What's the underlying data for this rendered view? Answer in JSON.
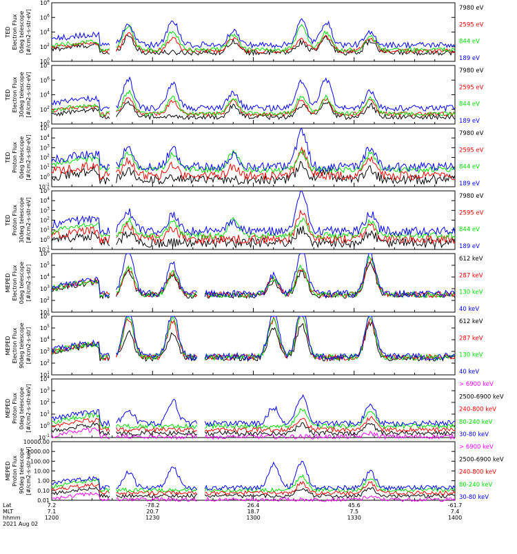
{
  "colors": {
    "black": "#000000",
    "red": "#ff0000",
    "green": "#00dd00",
    "blue": "#0000ff",
    "magenta": "#ff00ff"
  },
  "footer": {
    "rows": [
      {
        "label": "Lat",
        "values": [
          "7.2",
          "-78.2",
          "26.4",
          "45.6",
          "-61.7"
        ]
      },
      {
        "label": "MLT",
        "values": [
          "7.1",
          "20.7",
          "18.7",
          "7.5",
          "7.4"
        ]
      },
      {
        "label": "hhmm",
        "values": [
          "1200",
          "1230",
          "1300",
          "1330",
          "1400"
        ]
      }
    ],
    "date": "2021 Aug 02"
  },
  "chart_data": [
    {
      "type": "line",
      "instrument": "TED",
      "ylabel": [
        "TED",
        "Electron Flux",
        "0deg telescope",
        "[#/cm2-s-str-eV]"
      ],
      "scale": "log",
      "ytick_labels": [
        "10^0",
        "10^2",
        "10^4",
        "10^6",
        "10^8"
      ],
      "ylim": [
        1,
        100000000.0
      ],
      "series": [
        {
          "name": "7980 eV",
          "color": "#000000",
          "base": 1.6,
          "events": [
            [
              0.19,
              2.4
            ],
            [
              0.45,
              1.6
            ],
            [
              0.62,
              1.4
            ],
            [
              0.68,
              2.0
            ],
            [
              0.79,
              1.6
            ]
          ],
          "noise": 0.35
        },
        {
          "name": "2595 eV",
          "color": "#ff0000",
          "base": 1.9,
          "events": [
            [
              0.19,
              2.4
            ],
            [
              0.3,
              1.7
            ],
            [
              0.45,
              1.8
            ],
            [
              0.62,
              1.6
            ],
            [
              0.68,
              2.0
            ],
            [
              0.79,
              1.8
            ]
          ],
          "noise": 0.3
        },
        {
          "name": "844 eV",
          "color": "#00dd00",
          "base": 2.1,
          "events": [
            [
              0.19,
              3.3
            ],
            [
              0.3,
              2.6
            ],
            [
              0.45,
              2.0
            ],
            [
              0.62,
              3.4
            ],
            [
              0.68,
              2.4
            ],
            [
              0.79,
              1.8
            ]
          ],
          "noise": 0.3
        },
        {
          "name": "189 eV",
          "color": "#0000ff",
          "base": 3.0,
          "events": [
            [
              0.19,
              2.8
            ],
            [
              0.3,
              3.4
            ],
            [
              0.45,
              2.0
            ],
            [
              0.62,
              3.3
            ],
            [
              0.68,
              3.2
            ],
            [
              0.79,
              1.6
            ]
          ],
          "noise": 0.4
        }
      ]
    },
    {
      "type": "line",
      "instrument": "TED",
      "ylabel": [
        "TED",
        "Electron Flux",
        "30deg telescope",
        "[#/cm2-s-str-eV]"
      ],
      "scale": "log",
      "ytick_labels": [
        "10^0",
        "10^2",
        "10^4",
        "10^6",
        "10^8"
      ],
      "ylim": [
        1,
        100000000.0
      ],
      "series": [
        {
          "name": "7980 eV",
          "color": "#000000",
          "base": 1.3,
          "events": [
            [
              0.19,
              2.0
            ],
            [
              0.45,
              1.4
            ],
            [
              0.62,
              1.6
            ],
            [
              0.68,
              2.0
            ],
            [
              0.79,
              1.6
            ]
          ],
          "noise": 0.35
        },
        {
          "name": "2595 eV",
          "color": "#ff0000",
          "base": 1.8,
          "events": [
            [
              0.19,
              2.4
            ],
            [
              0.3,
              1.7
            ],
            [
              0.45,
              1.8
            ],
            [
              0.62,
              1.8
            ],
            [
              0.68,
              2.0
            ],
            [
              0.79,
              1.8
            ]
          ],
          "noise": 0.3
        },
        {
          "name": "844 eV",
          "color": "#00dd00",
          "base": 1.9,
          "events": [
            [
              0.19,
              3.0
            ],
            [
              0.3,
              2.2
            ],
            [
              0.45,
              2.0
            ],
            [
              0.62,
              2.4
            ],
            [
              0.68,
              2.2
            ],
            [
              0.79,
              2.0
            ]
          ],
          "noise": 0.3
        },
        {
          "name": "189 eV",
          "color": "#0000ff",
          "base": 2.9,
          "events": [
            [
              0.19,
              4.0
            ],
            [
              0.3,
              3.3
            ],
            [
              0.45,
              2.2
            ],
            [
              0.62,
              3.6
            ],
            [
              0.68,
              4.0
            ],
            [
              0.79,
              2.2
            ]
          ],
          "noise": 0.4
        }
      ]
    },
    {
      "type": "line",
      "instrument": "TED",
      "ylabel": [
        "TED",
        "Proton Flux",
        "0deg telescope",
        "[#/cm2-s-str-eV]"
      ],
      "scale": "log",
      "ytick_labels": [
        "10^-1",
        "10^0",
        "10^1",
        "10^2",
        "10^3",
        "10^4",
        "10^5"
      ],
      "ylim": [
        0.1,
        100000.0
      ],
      "series": [
        {
          "name": "7980 eV",
          "color": "#000000",
          "base": 1.0,
          "events": [
            [
              0.19,
              1.0
            ],
            [
              0.62,
              1.4
            ],
            [
              0.68,
              1.0
            ],
            [
              0.79,
              1.0
            ]
          ],
          "noise": 0.5
        },
        {
          "name": "2595 eV",
          "color": "#ff0000",
          "base": 1.5,
          "events": [
            [
              0.19,
              1.5
            ],
            [
              0.3,
              1.0
            ],
            [
              0.45,
              1.0
            ],
            [
              0.62,
              2.6
            ],
            [
              0.79,
              1.8
            ]
          ],
          "noise": 0.45
        },
        {
          "name": "844 eV",
          "color": "#00dd00",
          "base": 2.3,
          "events": [
            [
              0.19,
              1.8
            ],
            [
              0.3,
              1.6
            ],
            [
              0.45,
              1.8
            ],
            [
              0.62,
              1.8
            ],
            [
              0.79,
              1.6
            ]
          ],
          "noise": 0.3
        },
        {
          "name": "189 eV",
          "color": "#0000ff",
          "base": 2.7,
          "events": [
            [
              0.19,
              2.2
            ],
            [
              0.3,
              1.8
            ],
            [
              0.45,
              1.2
            ],
            [
              0.62,
              3.8
            ],
            [
              0.79,
              2.0
            ]
          ],
          "noise": 0.45
        }
      ]
    },
    {
      "type": "line",
      "instrument": "TED",
      "ylabel": [
        "TED",
        "Proton Flux",
        "30deg telescope",
        "[#/cm2-s-str-eV]"
      ],
      "scale": "log",
      "ytick_labels": [
        "10^-1",
        "10^0",
        "10^1",
        "10^2",
        "10^3",
        "10^4",
        "10^5"
      ],
      "ylim": [
        0.1,
        100000.0
      ],
      "series": [
        {
          "name": "7980 eV",
          "color": "#000000",
          "base": 0.9,
          "events": [
            [
              0.19,
              1.0
            ],
            [
              0.62,
              1.4
            ],
            [
              0.79,
              1.0
            ]
          ],
          "noise": 0.5
        },
        {
          "name": "2595 eV",
          "color": "#ff0000",
          "base": 1.4,
          "events": [
            [
              0.19,
              1.5
            ],
            [
              0.3,
              1.0
            ],
            [
              0.62,
              2.8
            ],
            [
              0.79,
              1.6
            ]
          ],
          "noise": 0.45
        },
        {
          "name": "844 eV",
          "color": "#00dd00",
          "base": 1.9,
          "events": [
            [
              0.19,
              1.6
            ],
            [
              0.3,
              1.4
            ],
            [
              0.45,
              1.6
            ],
            [
              0.62,
              1.6
            ],
            [
              0.79,
              1.4
            ]
          ],
          "noise": 0.3
        },
        {
          "name": "189 eV",
          "color": "#0000ff",
          "base": 2.5,
          "events": [
            [
              0.19,
              2.0
            ],
            [
              0.3,
              1.6
            ],
            [
              0.45,
              1.0
            ],
            [
              0.62,
              4.0
            ],
            [
              0.79,
              1.8
            ]
          ],
          "noise": 0.45
        }
      ]
    },
    {
      "type": "line",
      "instrument": "MEPED",
      "ylabel": [
        "MEPED",
        "Electron Flux",
        "0deg telescope",
        "[#/cm2-s-str]"
      ],
      "scale": "log",
      "ytick_labels": [
        "10^1",
        "10^2",
        "10^3",
        "10^4",
        "10^5",
        "10^6"
      ],
      "ylim": [
        10,
        1000000.0
      ],
      "series": [
        {
          "name": "612 keV",
          "color": "#000000",
          "base": 1.9,
          "events": [
            [
              0.19,
              2.0
            ],
            [
              0.3,
              1.8
            ],
            [
              0.55,
              1.2
            ],
            [
              0.62,
              2.0
            ],
            [
              0.79,
              2.8
            ]
          ],
          "noise": 0.25
        },
        {
          "name": "287 keV",
          "color": "#ff0000",
          "base": 2.0,
          "events": [
            [
              0.19,
              2.2
            ],
            [
              0.3,
              1.9
            ],
            [
              0.55,
              1.4
            ],
            [
              0.62,
              2.2
            ],
            [
              0.79,
              3.0
            ]
          ],
          "noise": 0.25
        },
        {
          "name": "130 keV",
          "color": "#00dd00",
          "base": 2.0,
          "events": [
            [
              0.19,
              2.4
            ],
            [
              0.3,
              2.0
            ],
            [
              0.55,
              1.4
            ],
            [
              0.62,
              2.4
            ],
            [
              0.79,
              3.2
            ]
          ],
          "noise": 0.25
        },
        {
          "name": "40 keV",
          "color": "#0000ff",
          "base": 2.1,
          "events": [
            [
              0.19,
              4.0
            ],
            [
              0.3,
              2.6
            ],
            [
              0.55,
              1.6
            ],
            [
              0.62,
              3.8
            ],
            [
              0.79,
              3.4
            ]
          ],
          "noise": 0.3
        }
      ]
    },
    {
      "type": "line",
      "instrument": "MEPED",
      "ylabel": [
        "MEPED",
        "Electron Flux",
        "90deg telescope",
        "[#/cm2-s-str]"
      ],
      "scale": "log",
      "ytick_labels": [
        "10^1",
        "10^2",
        "10^3",
        "10^4",
        "10^5",
        "10^6"
      ],
      "ylim": [
        10,
        1000000.0
      ],
      "series": [
        {
          "name": "612 keV",
          "color": "#000000",
          "base": 1.9,
          "events": [
            [
              0.19,
              2.2
            ],
            [
              0.3,
              2.0
            ],
            [
              0.55,
              2.6
            ],
            [
              0.62,
              2.8
            ],
            [
              0.79,
              3.0
            ]
          ],
          "noise": 0.25
        },
        {
          "name": "287 keV",
          "color": "#ff0000",
          "base": 2.0,
          "events": [
            [
              0.19,
              3.2
            ],
            [
              0.3,
              3.0
            ],
            [
              0.55,
              3.2
            ],
            [
              0.62,
              3.6
            ],
            [
              0.79,
              3.2
            ]
          ],
          "noise": 0.25
        },
        {
          "name": "130 keV",
          "color": "#00dd00",
          "base": 2.0,
          "events": [
            [
              0.19,
              3.6
            ],
            [
              0.3,
              3.4
            ],
            [
              0.55,
              3.4
            ],
            [
              0.62,
              3.8
            ],
            [
              0.79,
              3.4
            ]
          ],
          "noise": 0.25
        },
        {
          "name": "40 keV",
          "color": "#0000ff",
          "base": 2.1,
          "events": [
            [
              0.19,
              4.0
            ],
            [
              0.3,
              3.8
            ],
            [
              0.55,
              3.8
            ],
            [
              0.62,
              4.2
            ],
            [
              0.79,
              3.6
            ]
          ],
          "noise": 0.3
        }
      ]
    },
    {
      "type": "line",
      "instrument": "MEPED",
      "ylabel": [
        "MEPED",
        "Proton Flux",
        "0deg telescope",
        "[#/cm2-s-str-keV]"
      ],
      "scale": "log",
      "ytick_labels": [
        "10^-1",
        "10^0",
        "10^1",
        "10^2",
        "10^3",
        "10^4"
      ],
      "ylim": [
        0.1,
        10000.0
      ],
      "series": [
        {
          "name": "> 6900 keV",
          "color": "#ff00ff",
          "base": 0.1,
          "events": [
            [
              0.79,
              0.3
            ]
          ],
          "noise": 0.2
        },
        {
          "name": "2500-6900 keV",
          "color": "#000000",
          "base": 0.5,
          "events": [
            [
              0.62,
              0.8
            ],
            [
              0.79,
              0.8
            ]
          ],
          "noise": 0.2
        },
        {
          "name": "240-800 keV",
          "color": "#ff0000",
          "base": 0.9,
          "events": [
            [
              0.62,
              1.0
            ],
            [
              0.79,
              1.0
            ]
          ],
          "noise": 0.2
        },
        {
          "name": "80-240 keV",
          "color": "#00dd00",
          "base": 1.3,
          "events": [
            [
              0.62,
              1.4
            ],
            [
              0.79,
              1.2
            ]
          ],
          "noise": 0.2
        },
        {
          "name": "30-80 keV",
          "color": "#0000ff",
          "base": 1.6,
          "events": [
            [
              0.19,
              1.2
            ],
            [
              0.3,
              2.0
            ],
            [
              0.55,
              1.4
            ],
            [
              0.62,
              2.4
            ],
            [
              0.79,
              1.6
            ]
          ],
          "noise": 0.25
        }
      ]
    },
    {
      "type": "line",
      "instrument": "MEPED",
      "ylabel": [
        "MEPED",
        "Proton Flux",
        "90deg telescope",
        "[#/cm2-s-str-keV]"
      ],
      "scale": "log",
      "ytick_labels": [
        "0.01",
        "0.10",
        "1.00",
        "10.00",
        "100.00",
        "1000.00",
        "10000.00"
      ],
      "ylim": [
        0.01,
        10000
      ],
      "series": [
        {
          "name": "> 6900 keV",
          "color": "#ff00ff",
          "base": 0.1,
          "events": [
            [
              0.79,
              0.3
            ]
          ],
          "noise": 0.2
        },
        {
          "name": "2500-6900 keV",
          "color": "#000000",
          "base": 0.6,
          "events": [
            [
              0.62,
              0.8
            ],
            [
              0.79,
              0.8
            ]
          ],
          "noise": 0.2
        },
        {
          "name": "240-800 keV",
          "color": "#ff0000",
          "base": 1.0,
          "events": [
            [
              0.62,
              1.0
            ],
            [
              0.79,
              1.0
            ]
          ],
          "noise": 0.2
        },
        {
          "name": "80-240 keV",
          "color": "#00dd00",
          "base": 1.4,
          "events": [
            [
              0.62,
              1.4
            ],
            [
              0.79,
              1.2
            ]
          ],
          "noise": 0.2
        },
        {
          "name": "30-80 keV",
          "color": "#0000ff",
          "base": 1.7,
          "events": [
            [
              0.19,
              1.6
            ],
            [
              0.3,
              2.2
            ],
            [
              0.55,
              2.4
            ],
            [
              0.62,
              2.6
            ],
            [
              0.79,
              1.6
            ]
          ],
          "noise": 0.25
        }
      ]
    }
  ]
}
